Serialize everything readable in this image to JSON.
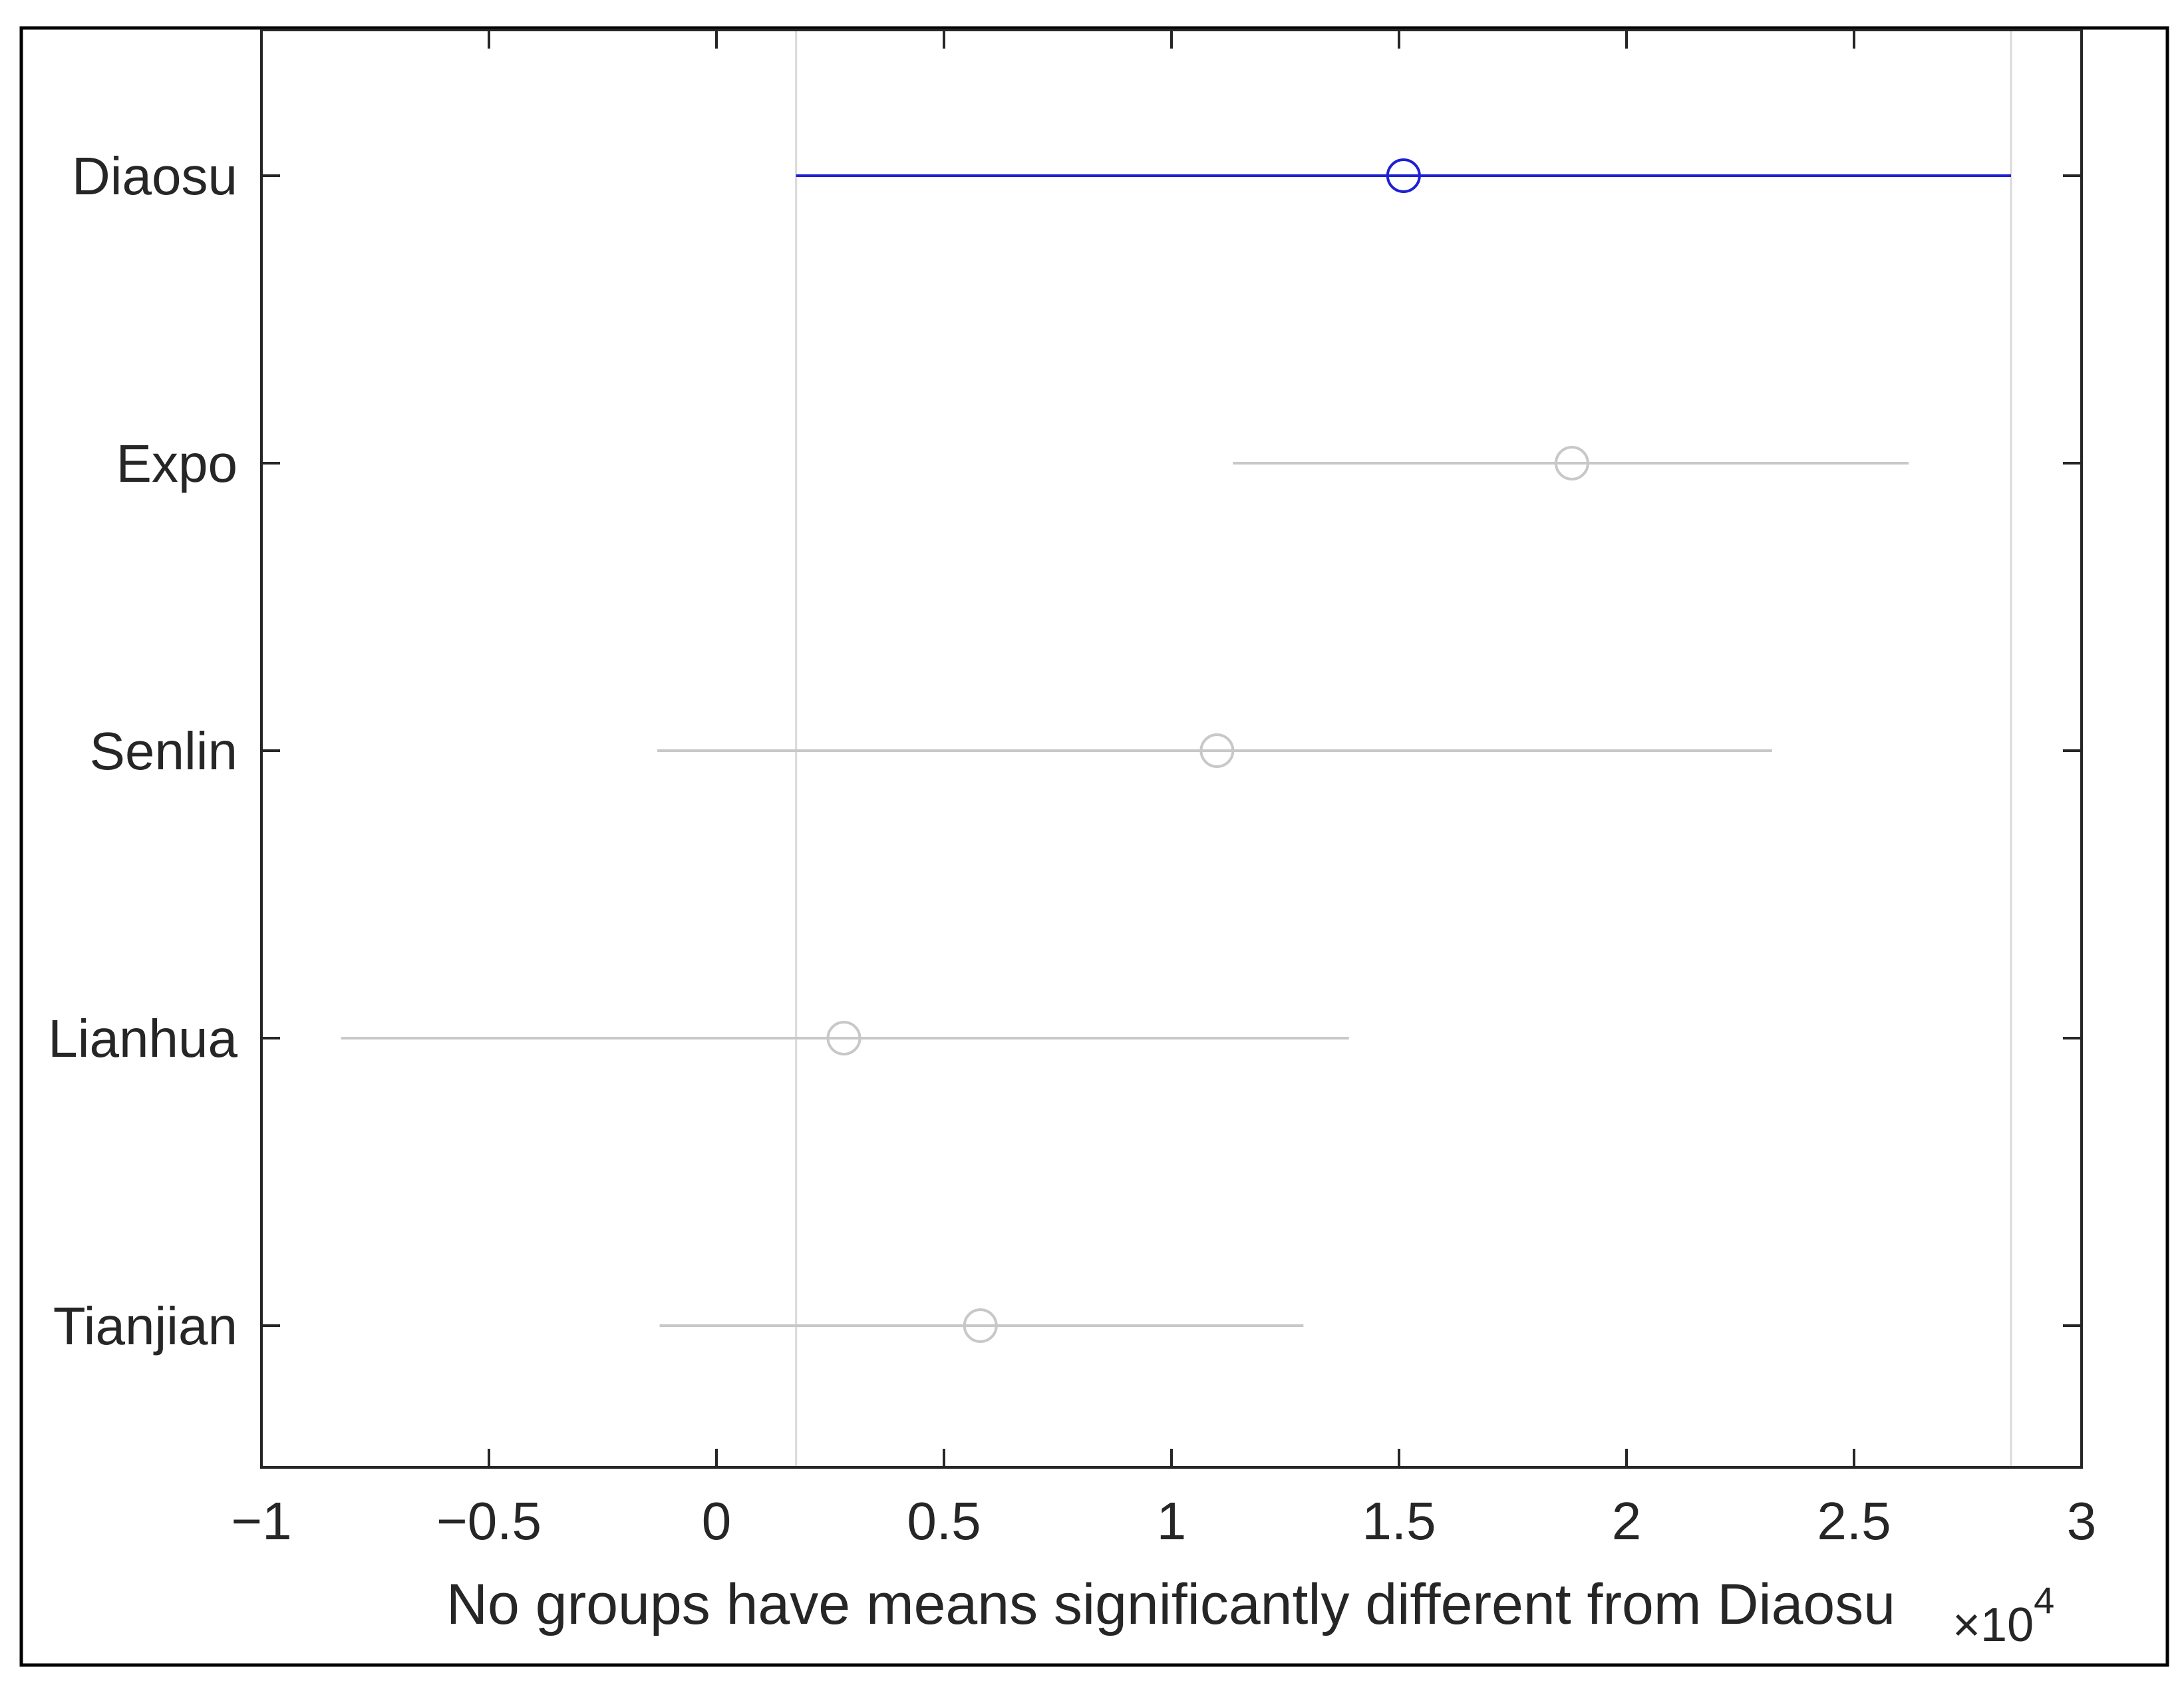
{
  "chart_data": {
    "type": "scatter",
    "subtype": "multiple-comparison-interval-plot",
    "title": "",
    "xlabel": "No groups have means significantly different from Diaosu",
    "ylabel": "",
    "x_exponent_label": "×10",
    "x_exponent_power": "4",
    "x_exponent_value": 10000,
    "xlim": [
      -1,
      3
    ],
    "x_ticks": [
      -1,
      -0.5,
      0,
      0.5,
      1,
      1.5,
      2,
      2.5,
      3
    ],
    "x_tick_labels": [
      "−1",
      "−0.5",
      "0",
      "0.5",
      "1",
      "1.5",
      "2",
      "2.5",
      "3"
    ],
    "categories": [
      "Diaosu",
      "Expo",
      "Senlin",
      "Lianhua",
      "Tianjian"
    ],
    "groups": [
      {
        "name": "Diaosu",
        "mean": 1.51,
        "lower": 0.175,
        "upper": 2.845,
        "selected": true
      },
      {
        "name": "Expo",
        "mean": 1.88,
        "lower": 1.135,
        "upper": 2.62,
        "selected": false
      },
      {
        "name": "Senlin",
        "mean": 1.1,
        "lower": -0.13,
        "upper": 2.32,
        "selected": false
      },
      {
        "name": "Lianhua",
        "mean": 0.28,
        "lower": -0.825,
        "upper": 1.39,
        "selected": false
      },
      {
        "name": "Tianjian",
        "mean": 0.58,
        "lower": -0.125,
        "upper": 1.29,
        "selected": false
      }
    ],
    "reference_lines": [
      0.175,
      2.845
    ],
    "grid": false,
    "colors": {
      "selected": "#1f1fd6",
      "other": "#c8c8c8",
      "reference": "#d9d9d9",
      "axes": "#262626",
      "frame": "#000000"
    }
  }
}
